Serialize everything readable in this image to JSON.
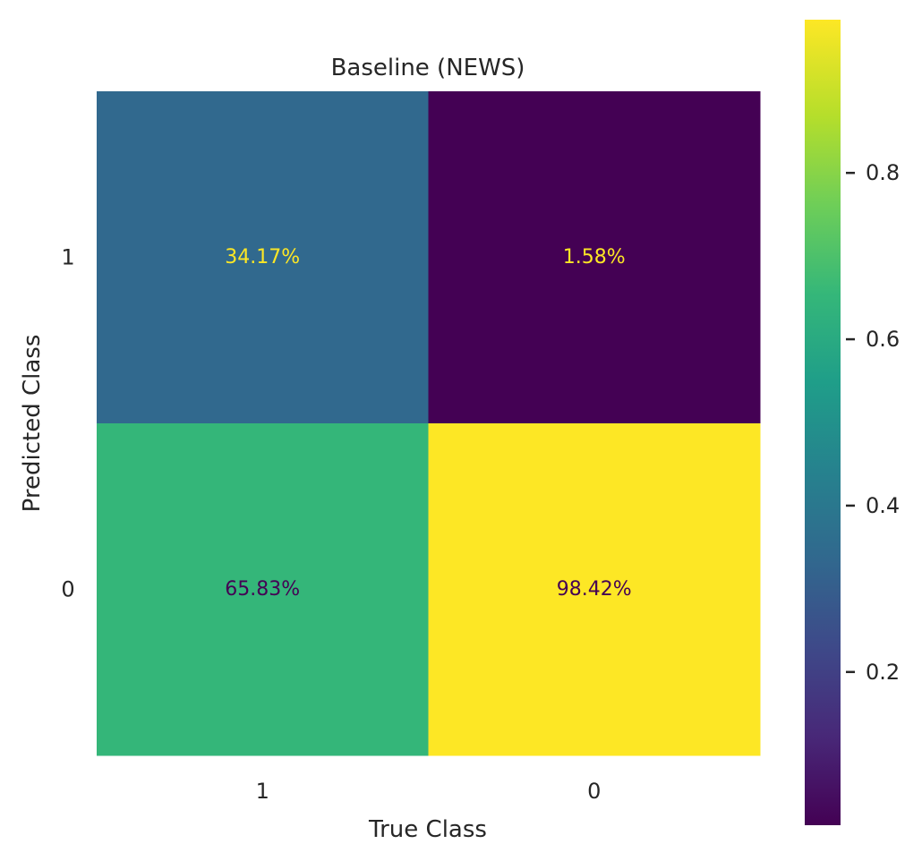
{
  "chart_data": {
    "type": "heatmap",
    "title": "Baseline (NEWS)",
    "xlabel": "True Class",
    "ylabel": "Predicted Class",
    "x_categories": [
      "1",
      "0"
    ],
    "y_categories": [
      "1",
      "0"
    ],
    "values": [
      [
        0.3417,
        0.0158
      ],
      [
        0.6583,
        0.9842
      ]
    ],
    "cell_labels": [
      [
        "34.17%",
        "1.58%"
      ],
      [
        "65.83%",
        "98.42%"
      ]
    ],
    "cell_label_colors": [
      [
        "#fde725",
        "#fde725"
      ],
      [
        "#440154",
        "#440154"
      ]
    ],
    "colorbar": {
      "colormap": "viridis",
      "range": [
        0.0158,
        0.9842
      ],
      "ticks": [
        0.2,
        0.4,
        0.6,
        0.8
      ],
      "tick_labels": [
        "0.2",
        "0.4",
        "0.6",
        "0.8"
      ]
    },
    "grid": false
  }
}
